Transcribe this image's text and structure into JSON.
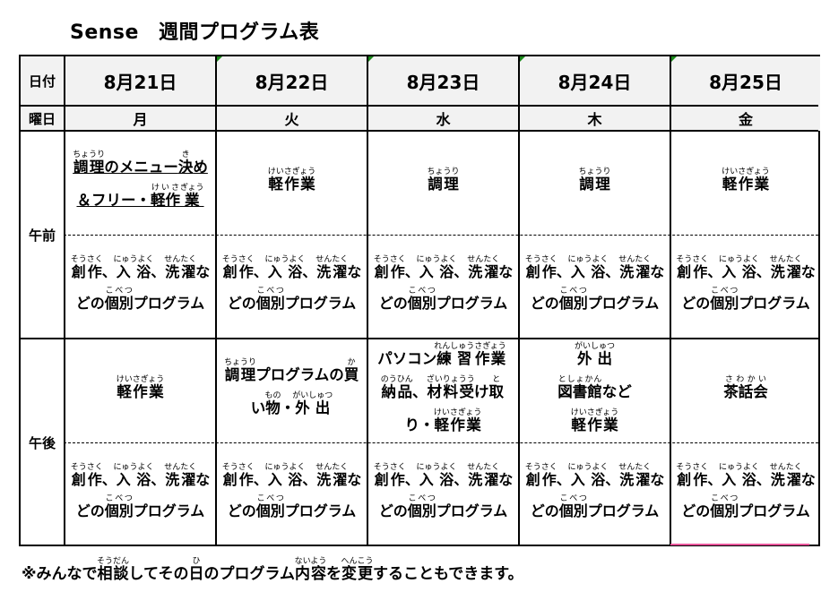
{
  "title": {
    "brand": "Sense",
    "text": "週間プログラム表"
  },
  "labels": {
    "date": "日付",
    "weekday": "曜日",
    "am": "午前",
    "pm": "午後"
  },
  "individual_program": [
    {
      "t": "創作",
      "r": "そうさく"
    },
    {
      "t": "、"
    },
    {
      "t": "入浴",
      "r": "にゅうよく"
    },
    {
      "t": "、"
    },
    {
      "t": "洗濯",
      "r": "せんたく"
    },
    {
      "t": "など"
    },
    {
      "t": "の"
    },
    {
      "t": "個別",
      "r": "こべつ"
    },
    {
      "t": "プログラム"
    }
  ],
  "days": [
    {
      "date": "8月21日",
      "weekday": "月",
      "am_underline": true,
      "am": [
        {
          "t": "調理",
          "r": "ちょうり"
        },
        {
          "t": "のメニュー"
        },
        {
          "t": "決",
          "r": "き"
        },
        {
          "t": "め＆フリー・"
        },
        {
          "t": "軽作",
          "r": "けいさ"
        },
        {
          "t": "業",
          "r": "ぎょう"
        }
      ],
      "pm": [
        {
          "t": "軽作業",
          "r": "けいさぎょう"
        }
      ]
    },
    {
      "date": "8月22日",
      "weekday": "火",
      "am": [
        {
          "t": "軽作業",
          "r": "けいさぎょう"
        }
      ],
      "pm": [
        {
          "t": "調理",
          "r": "ちょうり"
        },
        {
          "t": "プログラムの"
        },
        {
          "t": "買",
          "r": "か"
        },
        {
          "t": "い"
        },
        {
          "t": "物",
          "r": "もの"
        },
        {
          "t": "・"
        },
        {
          "t": "外出",
          "r": "がいしゅつ"
        }
      ]
    },
    {
      "date": "8月23日",
      "weekday": "水",
      "am": [
        {
          "t": "調理",
          "r": "ちょうり"
        }
      ],
      "pm": [
        {
          "t": "パソコン"
        },
        {
          "t": "練習",
          "r": "れんしゅう"
        },
        {
          "t": "作業",
          "r": "さぎょう"
        },
        {
          "t": "納品",
          "r": "のうひん"
        },
        {
          "t": "、"
        },
        {
          "t": "材料受",
          "r": "ざいりょうう"
        },
        {
          "t": "け"
        },
        {
          "t": "取",
          "r": "と"
        },
        {
          "t": "り・"
        },
        {
          "t": "軽作業",
          "r": "けいさぎょう"
        }
      ]
    },
    {
      "date": "8月24日",
      "weekday": "木",
      "am": [
        {
          "t": "調理",
          "r": "ちょうり"
        }
      ],
      "pm": [
        {
          "t": "外出",
          "r": "がいしゅつ"
        },
        {
          "br": true
        },
        {
          "t": "図書館",
          "r": "としょかん"
        },
        {
          "t": "など"
        },
        {
          "br": true
        },
        {
          "t": "軽作業",
          "r": "けいさぎょう"
        }
      ]
    },
    {
      "date": "8月25日",
      "weekday": "金",
      "am": [
        {
          "t": "軽作業",
          "r": "けいさぎょう"
        }
      ],
      "pm": [
        {
          "t": "茶話会",
          "r": "さわかい"
        }
      ]
    }
  ],
  "footnote": [
    {
      "t": "※みんなで"
    },
    {
      "t": "相談",
      "r": "そうだん"
    },
    {
      "t": "してその"
    },
    {
      "t": "日",
      "r": "ひ"
    },
    {
      "t": "のプログラム"
    },
    {
      "t": "内容",
      "r": "ないよう"
    },
    {
      "t": "を"
    },
    {
      "t": "変更",
      "r": "へんこう"
    },
    {
      "t": "することもできます。"
    }
  ],
  "colors": {
    "header_bg": "#f2f2f2",
    "comment_marker": "#1a8a1a",
    "border": "#000000"
  }
}
